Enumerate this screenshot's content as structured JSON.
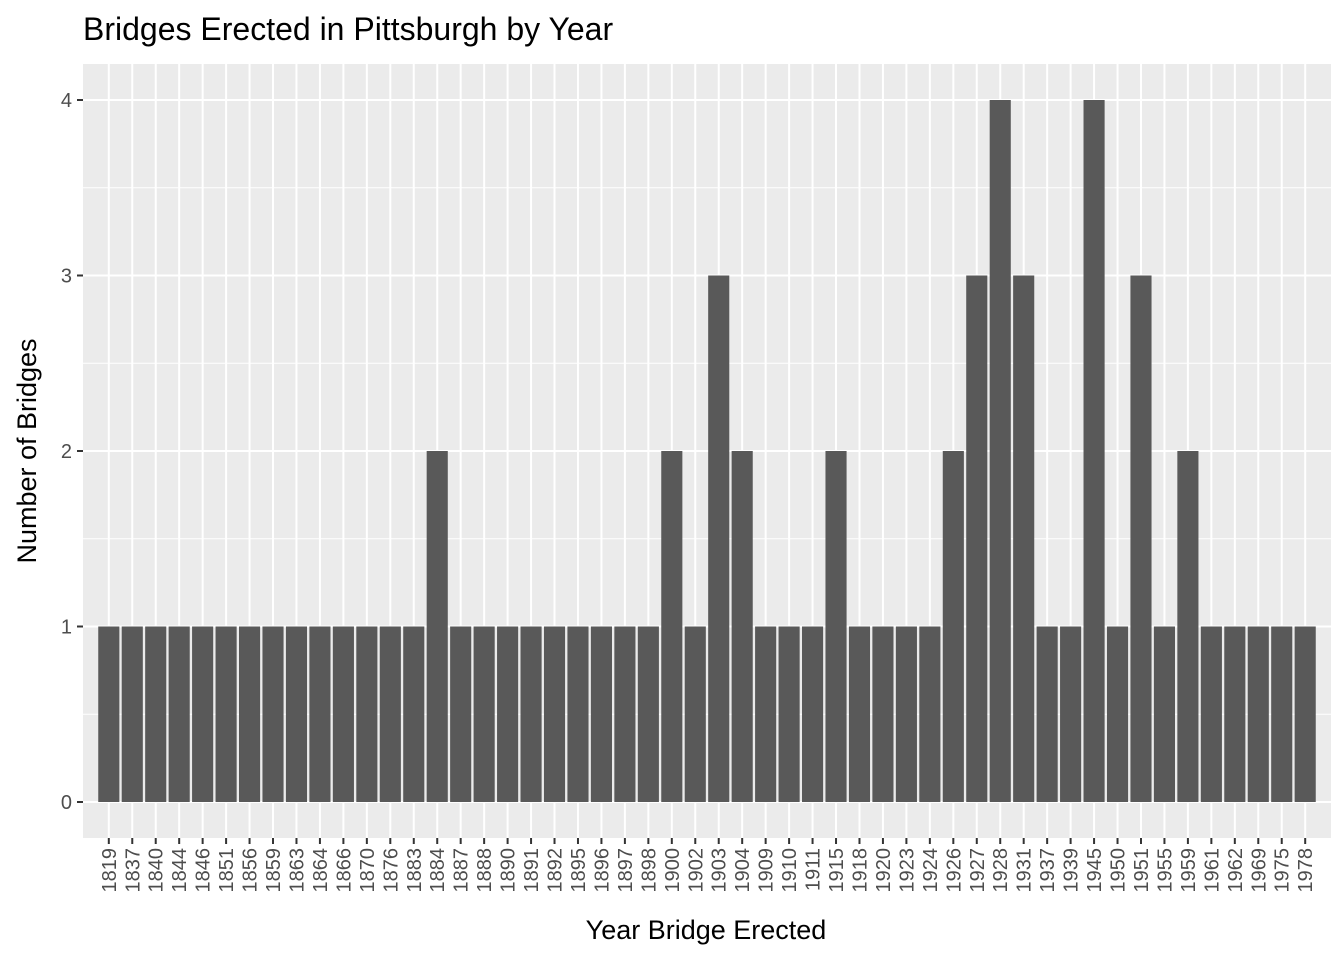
{
  "chart_data": {
    "type": "bar",
    "title": "Bridges Erected in Pittsburgh by Year",
    "xlabel": "Year Bridge Erected",
    "ylabel": "Number of Bridges",
    "categories": [
      "1819",
      "1837",
      "1840",
      "1844",
      "1846",
      "1851",
      "1856",
      "1859",
      "1863",
      "1864",
      "1866",
      "1870",
      "1876",
      "1883",
      "1884",
      "1887",
      "1888",
      "1890",
      "1891",
      "1892",
      "1895",
      "1896",
      "1897",
      "1898",
      "1900",
      "1902",
      "1903",
      "1904",
      "1909",
      "1910",
      "1911",
      "1915",
      "1918",
      "1920",
      "1923",
      "1924",
      "1926",
      "1927",
      "1928",
      "1931",
      "1937",
      "1939",
      "1945",
      "1950",
      "1951",
      "1955",
      "1959",
      "1961",
      "1962",
      "1969",
      "1975",
      "1978"
    ],
    "values": [
      1,
      1,
      1,
      1,
      1,
      1,
      1,
      1,
      1,
      1,
      1,
      1,
      1,
      1,
      2,
      1,
      1,
      1,
      1,
      1,
      1,
      1,
      1,
      1,
      2,
      1,
      3,
      2,
      1,
      1,
      1,
      2,
      1,
      1,
      1,
      1,
      2,
      3,
      4,
      3,
      1,
      1,
      4,
      1,
      3,
      1,
      2,
      1,
      1,
      1,
      1,
      1
    ],
    "yticks": [
      0,
      1,
      2,
      3,
      4
    ],
    "ylim": [
      0,
      4
    ],
    "grid": true,
    "legend": "none",
    "colors": {
      "bar": "#595959",
      "panel": "#ebebeb",
      "grid": "#ffffff",
      "tick_label": "#4d4d4d",
      "tick_mark": "#333333"
    }
  }
}
